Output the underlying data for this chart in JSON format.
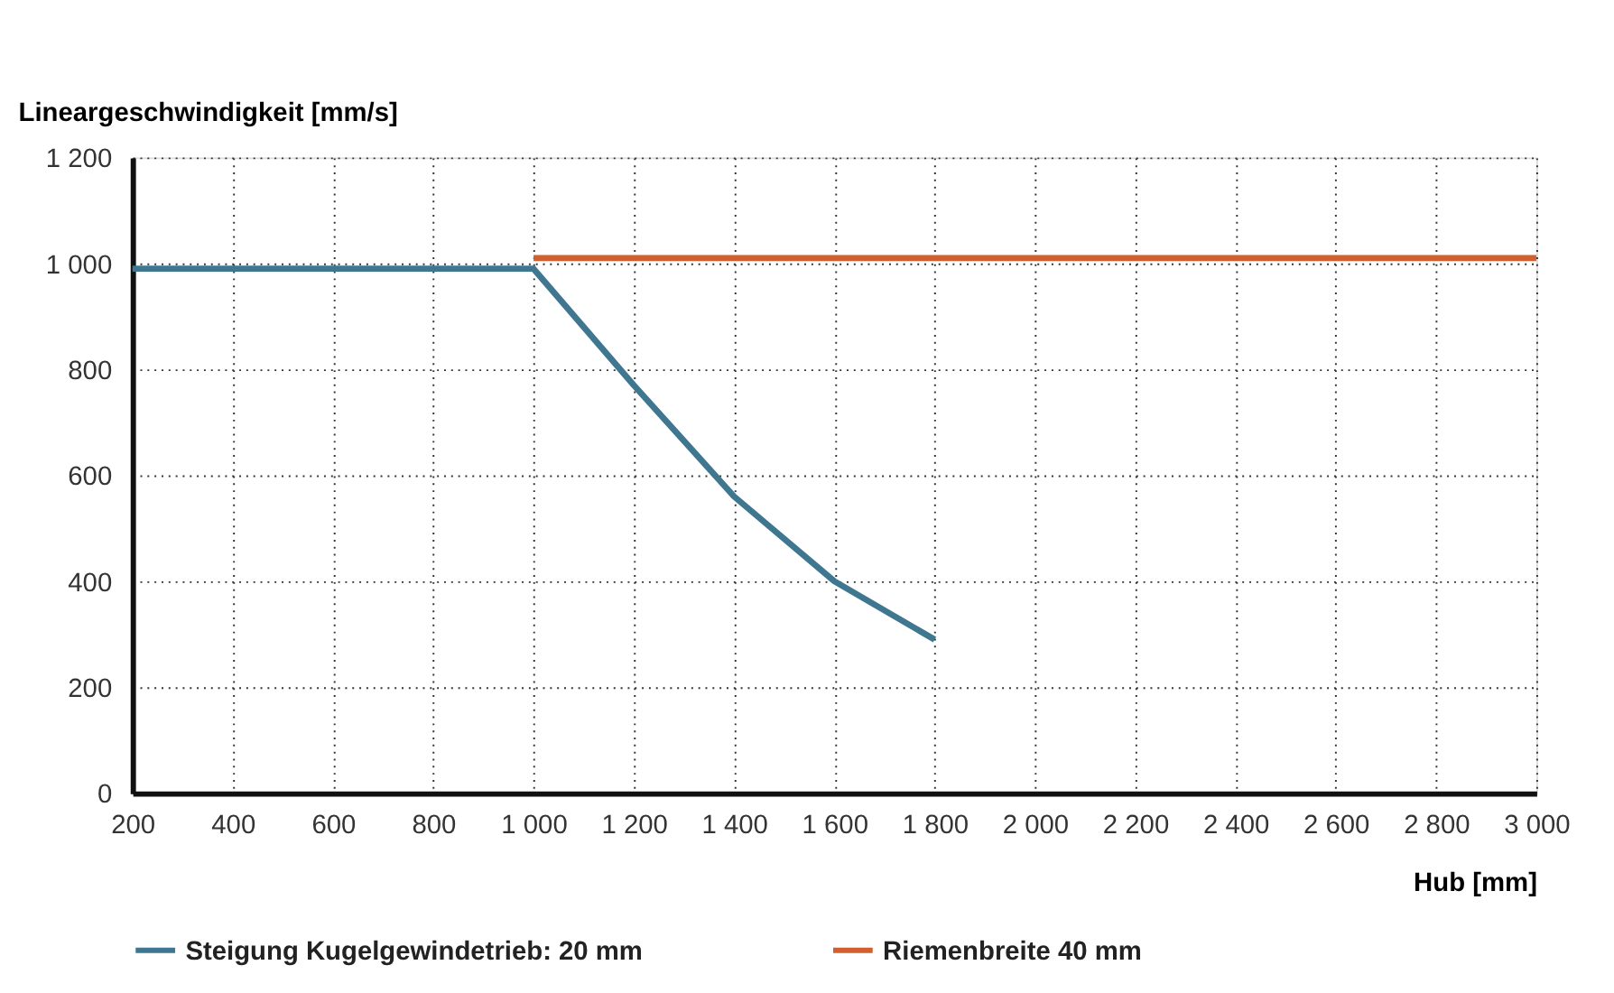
{
  "chart_data": {
    "type": "line",
    "xlabel": "Hub  [mm]",
    "ylabel": "Lineargeschwindigkeit [mm/s]",
    "xlim": [
      200,
      3000
    ],
    "ylim": [
      0,
      1200
    ],
    "xticks": [
      200,
      400,
      600,
      800,
      {
        "value": 1000,
        "label": "1 000"
      },
      {
        "value": 1200,
        "label": "1 200"
      },
      {
        "value": 1400,
        "label": "1 400"
      },
      {
        "value": 1600,
        "label": "1 600"
      },
      {
        "value": 1800,
        "label": "1 800"
      },
      {
        "value": 2000,
        "label": "2 000"
      },
      {
        "value": 2200,
        "label": "2 200"
      },
      {
        "value": 2400,
        "label": "2 400"
      },
      {
        "value": 2600,
        "label": "2 600"
      },
      {
        "value": 2800,
        "label": "2 800"
      },
      {
        "value": 3000,
        "label": "3 000"
      }
    ],
    "yticks": [
      0,
      200,
      400,
      600,
      800,
      {
        "value": 1000,
        "label": "1 000"
      },
      {
        "value": 1200,
        "label": "1 200"
      }
    ],
    "grid": true,
    "legend": "bottom",
    "marker": "none",
    "line_style": "solid",
    "series": [
      {
        "name": "Steigung Kugelgewindetrieb: 20 mm",
        "color": "#3f7690",
        "x": [
          200,
          1000,
          1200,
          1400,
          1600,
          1800
        ],
        "values": [
          990,
          990,
          770,
          560,
          400,
          290
        ]
      },
      {
        "name": "Riemenbreite 40 mm",
        "color": "#d0602f",
        "x": [
          1000,
          3000
        ],
        "values": [
          1010,
          1010
        ]
      }
    ]
  }
}
